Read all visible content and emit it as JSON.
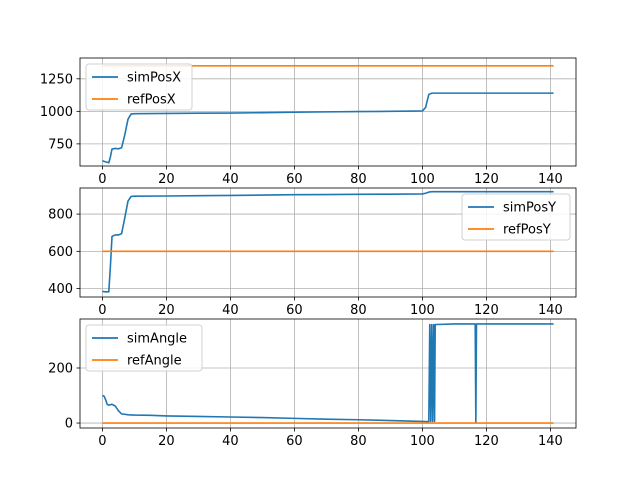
{
  "chart_data": [
    {
      "type": "line",
      "title": "",
      "xlabel": "",
      "ylabel": "",
      "xlim": [
        -7,
        148
      ],
      "ylim": [
        580,
        1410
      ],
      "xticks": [
        0,
        20,
        40,
        60,
        80,
        100,
        120,
        140
      ],
      "xtick_labels": [
        "0",
        "20",
        "40",
        "60",
        "80",
        "100",
        "120",
        "140"
      ],
      "yticks": [
        750,
        1000,
        1250
      ],
      "ytick_labels": [
        "750",
        "1000",
        "1250"
      ],
      "grid": true,
      "legend_position": "upper-left",
      "series": [
        {
          "name": "simPosX",
          "color": "#1f77b4",
          "x": [
            0,
            1,
            2,
            2.5,
            3,
            4,
            5,
            6,
            7,
            8,
            9,
            10,
            15,
            20,
            30,
            40,
            50,
            60,
            70,
            80,
            90,
            98,
            100,
            101,
            102,
            103,
            110,
            120,
            130,
            141
          ],
          "y": [
            620,
            612,
            605,
            650,
            710,
            715,
            712,
            720,
            820,
            940,
            980,
            982,
            983,
            984,
            986,
            987,
            990,
            993,
            996,
            998,
            1000,
            1002,
            1003,
            1030,
            1130,
            1140,
            1140,
            1140,
            1140,
            1140
          ]
        },
        {
          "name": "refPosX",
          "color": "#ff7f0e",
          "x": [
            0,
            141
          ],
          "y": [
            1350,
            1350
          ]
        }
      ]
    },
    {
      "type": "line",
      "title": "",
      "xlabel": "",
      "ylabel": "",
      "xlim": [
        -7,
        148
      ],
      "ylim": [
        355,
        940
      ],
      "xticks": [
        0,
        20,
        40,
        60,
        80,
        100,
        120,
        140
      ],
      "xtick_labels": [
        "0",
        "20",
        "40",
        "60",
        "80",
        "100",
        "120",
        "140"
      ],
      "yticks": [
        400,
        600,
        800
      ],
      "ytick_labels": [
        "400",
        "600",
        "800"
      ],
      "grid": true,
      "legend_position": "upper-right",
      "series": [
        {
          "name": "simPosY",
          "color": "#1f77b4",
          "x": [
            0,
            1,
            2,
            2.5,
            3,
            4,
            5,
            6,
            7,
            8,
            9,
            10,
            20,
            30,
            40,
            50,
            60,
            70,
            80,
            90,
            100,
            101,
            102,
            103,
            110,
            120,
            130,
            141
          ],
          "y": [
            385,
            383,
            383,
            520,
            680,
            688,
            688,
            695,
            780,
            870,
            895,
            896,
            897,
            899,
            900,
            902,
            904,
            905,
            906,
            907,
            908,
            912,
            918,
            920,
            920,
            920,
            920,
            920
          ]
        },
        {
          "name": "refPosY",
          "color": "#ff7f0e",
          "x": [
            0,
            141
          ],
          "y": [
            600,
            600
          ]
        }
      ]
    },
    {
      "type": "line",
      "title": "",
      "xlabel": "",
      "ylabel": "",
      "xlim": [
        -7,
        148
      ],
      "ylim": [
        -18,
        378
      ],
      "xticks": [
        0,
        20,
        40,
        60,
        80,
        100,
        120,
        140
      ],
      "xtick_labels": [
        "0",
        "20",
        "40",
        "60",
        "80",
        "100",
        "120",
        "140"
      ],
      "yticks": [
        0,
        200
      ],
      "ytick_labels": [
        "0",
        "200"
      ],
      "grid": true,
      "legend_position": "upper-left",
      "series": [
        {
          "name": "simAngle",
          "color": "#1f77b4",
          "x": [
            0,
            0.5,
            1,
            1.5,
            2,
            3,
            4,
            5,
            6,
            7,
            8,
            10,
            15,
            20,
            30,
            40,
            50,
            60,
            70,
            80,
            90,
            100,
            102,
            102.3,
            102.6,
            102.9,
            103.2,
            103.5,
            103.8,
            104,
            104.5,
            110,
            116.5,
            116.7,
            116.9,
            120,
            130,
            141
          ],
          "y": [
            100,
            98,
            85,
            68,
            65,
            68,
            62,
            45,
            33,
            32,
            30,
            29,
            28,
            26,
            24,
            22,
            20,
            17,
            14,
            12,
            9,
            6,
            5,
            358,
            6,
            358,
            6,
            358,
            6,
            358,
            358,
            360,
            360,
            2,
            360,
            360,
            360,
            360
          ]
        },
        {
          "name": "refAngle",
          "color": "#ff7f0e",
          "x": [
            0,
            141
          ],
          "y": [
            0,
            0
          ]
        }
      ]
    }
  ]
}
